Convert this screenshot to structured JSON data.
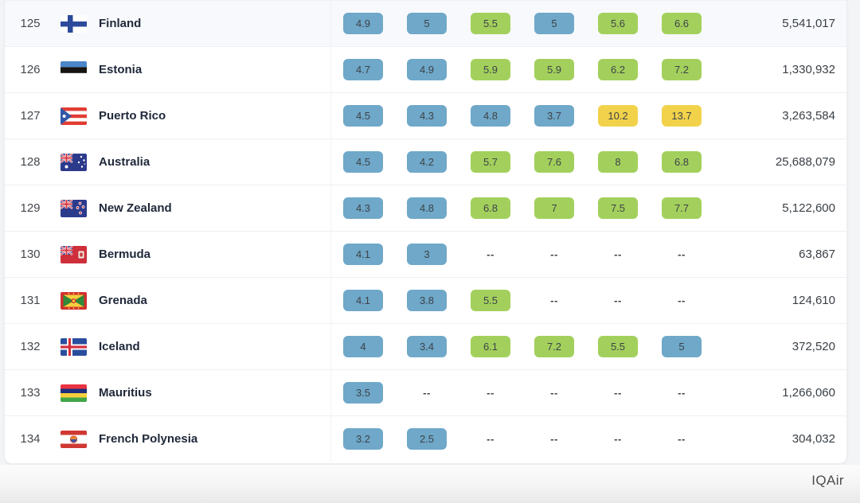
{
  "page": {
    "footer_brand": "IQAir"
  },
  "legend_colors": {
    "blue": "#6fa8c9",
    "green": "#a3d05c",
    "yellow": "#f2d24b"
  },
  "table": {
    "no_data_placeholder": "--",
    "rows": [
      {
        "rank": "125",
        "country": "Finland",
        "flag": "fi",
        "highlighted": true,
        "values": [
          {
            "v": "4.9",
            "c": "blue"
          },
          {
            "v": "5",
            "c": "blue"
          },
          {
            "v": "5.5",
            "c": "green"
          },
          {
            "v": "5",
            "c": "blue"
          },
          {
            "v": "5.6",
            "c": "green"
          },
          {
            "v": "6.6",
            "c": "green"
          }
        ],
        "population": "5,541,017"
      },
      {
        "rank": "126",
        "country": "Estonia",
        "flag": "ee",
        "highlighted": false,
        "values": [
          {
            "v": "4.7",
            "c": "blue"
          },
          {
            "v": "4.9",
            "c": "blue"
          },
          {
            "v": "5.9",
            "c": "green"
          },
          {
            "v": "5.9",
            "c": "green"
          },
          {
            "v": "6.2",
            "c": "green"
          },
          {
            "v": "7.2",
            "c": "green"
          }
        ],
        "population": "1,330,932"
      },
      {
        "rank": "127",
        "country": "Puerto Rico",
        "flag": "pr",
        "highlighted": false,
        "values": [
          {
            "v": "4.5",
            "c": "blue"
          },
          {
            "v": "4.3",
            "c": "blue"
          },
          {
            "v": "4.8",
            "c": "blue"
          },
          {
            "v": "3.7",
            "c": "blue"
          },
          {
            "v": "10.2",
            "c": "yellow"
          },
          {
            "v": "13.7",
            "c": "yellow"
          }
        ],
        "population": "3,263,584"
      },
      {
        "rank": "128",
        "country": "Australia",
        "flag": "au",
        "highlighted": false,
        "values": [
          {
            "v": "4.5",
            "c": "blue"
          },
          {
            "v": "4.2",
            "c": "blue"
          },
          {
            "v": "5.7",
            "c": "green"
          },
          {
            "v": "7.6",
            "c": "green"
          },
          {
            "v": "8",
            "c": "green"
          },
          {
            "v": "6.8",
            "c": "green"
          }
        ],
        "population": "25,688,079"
      },
      {
        "rank": "129",
        "country": "New Zealand",
        "flag": "nz",
        "highlighted": false,
        "values": [
          {
            "v": "4.3",
            "c": "blue"
          },
          {
            "v": "4.8",
            "c": "blue"
          },
          {
            "v": "6.8",
            "c": "green"
          },
          {
            "v": "7",
            "c": "green"
          },
          {
            "v": "7.5",
            "c": "green"
          },
          {
            "v": "7.7",
            "c": "green"
          }
        ],
        "population": "5,122,600"
      },
      {
        "rank": "130",
        "country": "Bermuda",
        "flag": "bm",
        "highlighted": false,
        "values": [
          {
            "v": "4.1",
            "c": "blue"
          },
          {
            "v": "3",
            "c": "blue"
          },
          null,
          null,
          null,
          null
        ],
        "population": "63,867"
      },
      {
        "rank": "131",
        "country": "Grenada",
        "flag": "gd",
        "highlighted": false,
        "values": [
          {
            "v": "4.1",
            "c": "blue"
          },
          {
            "v": "3.8",
            "c": "blue"
          },
          {
            "v": "5.5",
            "c": "green"
          },
          null,
          null,
          null
        ],
        "population": "124,610"
      },
      {
        "rank": "132",
        "country": "Iceland",
        "flag": "is",
        "highlighted": false,
        "values": [
          {
            "v": "4",
            "c": "blue"
          },
          {
            "v": "3.4",
            "c": "blue"
          },
          {
            "v": "6.1",
            "c": "green"
          },
          {
            "v": "7.2",
            "c": "green"
          },
          {
            "v": "5.5",
            "c": "green"
          },
          {
            "v": "5",
            "c": "blue"
          }
        ],
        "population": "372,520"
      },
      {
        "rank": "133",
        "country": "Mauritius",
        "flag": "mu",
        "highlighted": false,
        "values": [
          {
            "v": "3.5",
            "c": "blue"
          },
          null,
          null,
          null,
          null,
          null
        ],
        "population": "1,266,060"
      },
      {
        "rank": "134",
        "country": "French Polynesia",
        "flag": "pf",
        "highlighted": false,
        "values": [
          {
            "v": "3.2",
            "c": "blue"
          },
          {
            "v": "2.5",
            "c": "blue"
          },
          null,
          null,
          null,
          null
        ],
        "population": "304,032"
      }
    ]
  }
}
